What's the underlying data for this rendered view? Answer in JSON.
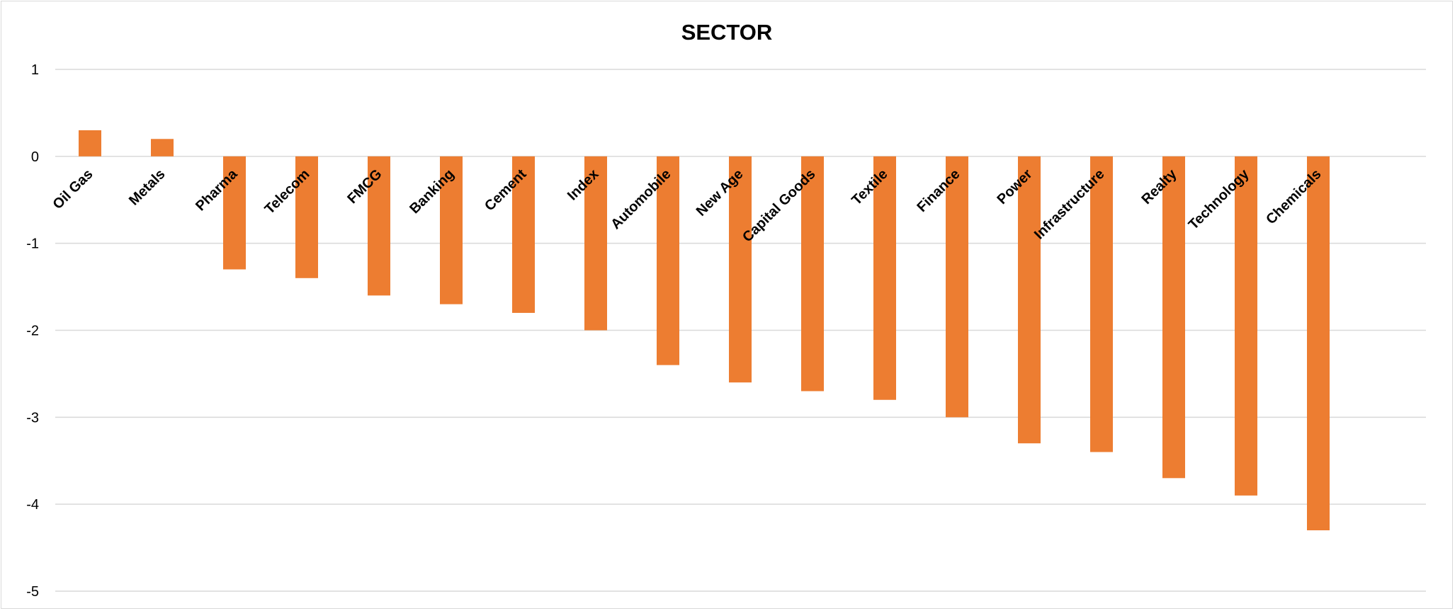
{
  "chart_data": {
    "type": "bar",
    "title": "SECTOR",
    "xlabel": "",
    "ylabel": "",
    "categories": [
      "Oil Gas",
      "Metals",
      "Pharma",
      "Telecom",
      "FMCG",
      "Banking",
      "Cement",
      "Index",
      "Automobile",
      "New Age",
      "Capital Goods",
      "Textile",
      "Finance",
      "Power",
      "Infrastructure",
      "Realty",
      "Technology",
      "Chemicals"
    ],
    "values": [
      0.3,
      0.2,
      -1.3,
      -1.4,
      -1.6,
      -1.7,
      -1.8,
      -2.0,
      -2.4,
      -2.6,
      -2.7,
      -2.8,
      -3.0,
      -3.3,
      -3.4,
      -3.7,
      -3.9,
      -4.3
    ],
    "ylim": [
      -5,
      1
    ],
    "yticks": [
      1,
      0,
      -1,
      -2,
      -3,
      -4,
      -5
    ],
    "grid": true,
    "legend": "none",
    "bar_color": "#ED7D31",
    "grid_color": "#D9D9D9"
  }
}
